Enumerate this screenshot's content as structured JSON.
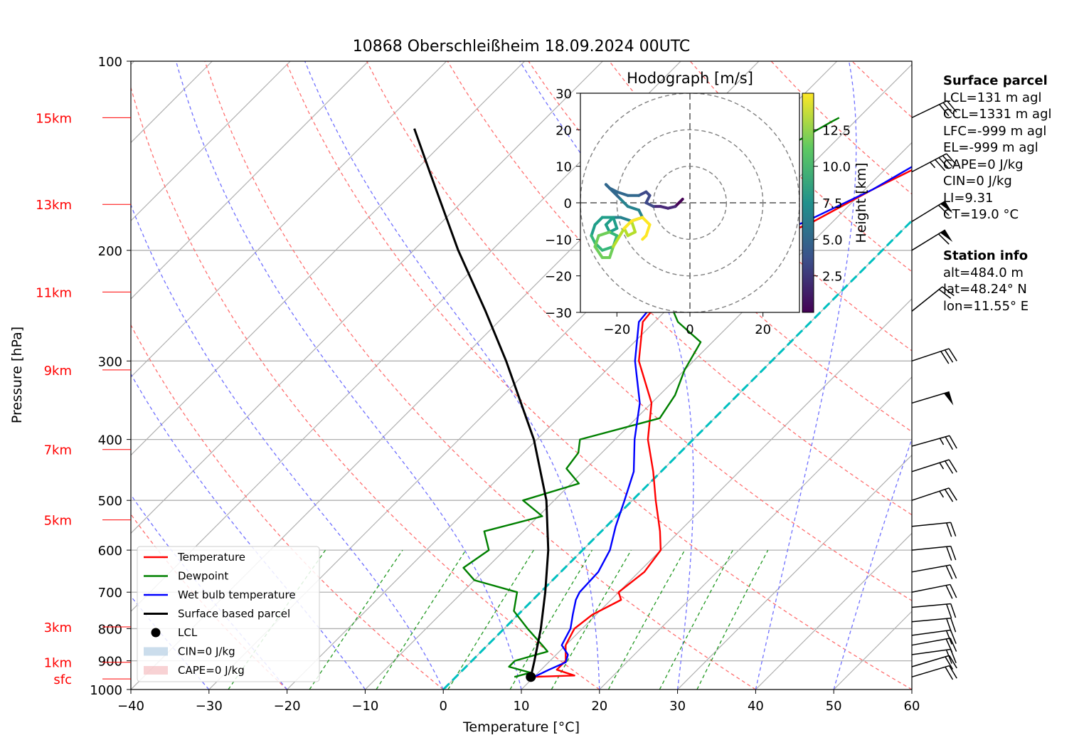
{
  "chart_data": {
    "type": "skew-t",
    "title": "10868 Oberschleißheim 18.09.2024 00UTC",
    "xlabel": "Temperature [°C]",
    "ylabel": "Pressure [hPa]",
    "xlim": [
      -40,
      60
    ],
    "ylim": [
      1000,
      100
    ],
    "x_ticks": [
      "−40",
      "−30",
      "−20",
      "−10",
      "0",
      "10",
      "20",
      "30",
      "40",
      "50",
      "60"
    ],
    "y_ticks": [
      {
        "p": 100,
        "label": "100"
      },
      {
        "p": 200,
        "label": "200"
      },
      {
        "p": 300,
        "label": "300"
      },
      {
        "p": 400,
        "label": "400"
      },
      {
        "p": 500,
        "label": "500"
      },
      {
        "p": 600,
        "label": "600"
      },
      {
        "p": 700,
        "label": "700"
      },
      {
        "p": 800,
        "label": "800"
      },
      {
        "p": 900,
        "label": "900"
      },
      {
        "p": 1000,
        "label": "1000"
      }
    ],
    "height_ticks": [
      {
        "p": 962,
        "label": "sfc"
      },
      {
        "p": 905,
        "label": "1km"
      },
      {
        "p": 795,
        "label": "3km"
      },
      {
        "p": 537,
        "label": "5km"
      },
      {
        "p": 415,
        "label": "7km"
      },
      {
        "p": 310,
        "label": "9km"
      },
      {
        "p": 233,
        "label": "11km"
      },
      {
        "p": 169,
        "label": "13km"
      },
      {
        "p": 123,
        "label": "15km"
      }
    ],
    "series": [
      {
        "name": "Temperature",
        "color": "#ff0000",
        "points": [
          [
            955,
            9.6
          ],
          [
            950,
            15.0
          ],
          [
            930,
            12.0
          ],
          [
            900,
            12.0
          ],
          [
            850,
            10.0
          ],
          [
            800,
            9.0
          ],
          [
            760,
            9.5
          ],
          [
            720,
            11.3
          ],
          [
            700,
            10.0
          ],
          [
            650,
            10.7
          ],
          [
            600,
            10.0
          ],
          [
            560,
            7.5
          ],
          [
            500,
            3.0
          ],
          [
            450,
            -1.0
          ],
          [
            400,
            -5.8
          ],
          [
            350,
            -10.0
          ],
          [
            300,
            -17.0
          ],
          [
            260,
            -21.5
          ],
          [
            240,
            -22.0
          ],
          [
            220,
            -22.2
          ],
          [
            205,
            -21.0
          ],
          [
            195,
            -16.0
          ],
          [
            180,
            -12.5
          ],
          [
            160,
            -9.0
          ],
          [
            145,
            -5.5
          ],
          [
            130,
            -4.0
          ],
          [
            122,
            -6.0
          ]
        ]
      },
      {
        "name": "Dewpoint",
        "color": "#008000",
        "points": [
          [
            955,
            7.5
          ],
          [
            940,
            9.0
          ],
          [
            920,
            5.5
          ],
          [
            900,
            5.5
          ],
          [
            870,
            8.5
          ],
          [
            850,
            7.0
          ],
          [
            800,
            3.0
          ],
          [
            750,
            -1.0
          ],
          [
            700,
            -3.0
          ],
          [
            670,
            -10.0
          ],
          [
            640,
            -13.0
          ],
          [
            600,
            -12.0
          ],
          [
            560,
            -15.0
          ],
          [
            530,
            -9.5
          ],
          [
            500,
            -14.0
          ],
          [
            470,
            -9.0
          ],
          [
            445,
            -12.5
          ],
          [
            420,
            -13.0
          ],
          [
            400,
            -14.5
          ],
          [
            370,
            -7.0
          ],
          [
            340,
            -8.0
          ],
          [
            310,
            -10.0
          ],
          [
            280,
            -11.5
          ],
          [
            260,
            -17.0
          ],
          [
            240,
            -21.0
          ],
          [
            220,
            -22.0
          ],
          [
            200,
            -20.0
          ],
          [
            190,
            -23.0
          ],
          [
            180,
            -29.0
          ],
          [
            170,
            -30.0
          ],
          [
            155,
            -28.5
          ],
          [
            140,
            -26.0
          ],
          [
            125,
            -23.0
          ],
          [
            123,
            -22.5
          ]
        ]
      },
      {
        "name": "Wet bulb temperature",
        "color": "#0000ff",
        "points": [
          [
            955,
            10.0
          ],
          [
            930,
            11.0
          ],
          [
            905,
            12.2
          ],
          [
            880,
            11.5
          ],
          [
            850,
            9.5
          ],
          [
            800,
            8.5
          ],
          [
            760,
            7.0
          ],
          [
            720,
            5.5
          ],
          [
            700,
            5.0
          ],
          [
            650,
            4.8
          ],
          [
            600,
            3.5
          ],
          [
            550,
            1.2
          ],
          [
            500,
            -1.0
          ],
          [
            450,
            -3.5
          ],
          [
            400,
            -7.5
          ],
          [
            350,
            -11.5
          ],
          [
            300,
            -17.5
          ],
          [
            260,
            -22.0
          ],
          [
            240,
            -22.5
          ],
          [
            220,
            -22.5
          ],
          [
            205,
            -21.5
          ],
          [
            195,
            -17.5
          ],
          [
            180,
            -13.5
          ],
          [
            160,
            -9.0
          ],
          [
            145,
            -6.5
          ],
          [
            130,
            -5.0
          ],
          [
            122,
            -6.5
          ]
        ]
      },
      {
        "name": "Surface based parcel",
        "color": "#000000",
        "points": [
          [
            955,
            9.6
          ],
          [
            900,
            8.0
          ],
          [
            850,
            6.4
          ],
          [
            800,
            4.7
          ],
          [
            700,
            0.6
          ],
          [
            600,
            -4.4
          ],
          [
            500,
            -11.0
          ],
          [
            400,
            -20.4
          ],
          [
            300,
            -34.0
          ],
          [
            250,
            -43.0
          ],
          [
            200,
            -54.3
          ],
          [
            150,
            -68.0
          ],
          [
            128,
            -75.5
          ]
        ]
      }
    ],
    "lcl": {
      "name": "LCL",
      "p": 955,
      "t": 9.6
    },
    "cin_label": "CIN=0 J/kg",
    "cape_label": "CAPE=0 J/kg",
    "zero_isotherm": {
      "color": "#00c0c0",
      "points": [
        [
          1000,
          0
        ],
        [
          120,
          0
        ]
      ]
    },
    "wind_barbs_kt": [
      {
        "p": 955,
        "u": -20,
        "v": -6
      },
      {
        "p": 920,
        "u": -20,
        "v": -6
      },
      {
        "p": 880,
        "u": -22,
        "v": -3
      },
      {
        "p": 850,
        "u": -22,
        "v": -4
      },
      {
        "p": 820,
        "u": -22,
        "v": -3
      },
      {
        "p": 780,
        "u": -22,
        "v": -2
      },
      {
        "p": 740,
        "u": -22,
        "v": -2
      },
      {
        "p": 700,
        "u": -20,
        "v": -4
      },
      {
        "p": 650,
        "u": -22,
        "v": -4
      },
      {
        "p": 600,
        "u": -20,
        "v": -2
      },
      {
        "p": 550,
        "u": -20,
        "v": -2
      },
      {
        "p": 500,
        "u": -24,
        "v": -8
      },
      {
        "p": 450,
        "u": -25,
        "v": -8
      },
      {
        "p": 410,
        "u": -25,
        "v": -7
      },
      {
        "p": 350,
        "u": -50,
        "v": -15
      },
      {
        "p": 300,
        "u": -30,
        "v": -10
      },
      {
        "p": 250,
        "u": -15,
        "v": -12
      },
      {
        "p": 200,
        "u": -52,
        "v": -32
      },
      {
        "p": 180,
        "u": -52,
        "v": -32
      },
      {
        "p": 150,
        "u": -42,
        "v": -22
      },
      {
        "p": 123,
        "u": -25,
        "v": -12
      }
    ],
    "hodograph": {
      "title": "Hodograph [m/s]",
      "xlim": [
        -30,
        30
      ],
      "ylim": [
        -30,
        30
      ],
      "ticks": [
        "−20",
        "0",
        "20"
      ],
      "yticks": [
        "30",
        "20",
        "10",
        "0",
        "−10",
        "−20",
        "−30"
      ],
      "rings": [
        10,
        20,
        30
      ],
      "colorbar_label": "Height [km]",
      "colorbar_ticks": [
        "2.5",
        "5.0",
        "7.5",
        "10.0",
        "12.5"
      ],
      "colorbar_range": [
        0,
        15
      ],
      "trace": [
        [
          -2,
          1,
          0.2
        ],
        [
          -3,
          0,
          0.6
        ],
        [
          -4,
          -1,
          1.0
        ],
        [
          -6,
          -1.5,
          1.5
        ],
        [
          -8,
          -1,
          2.0
        ],
        [
          -10,
          -1,
          2.5
        ],
        [
          -12,
          0,
          3.0
        ],
        [
          -11,
          2,
          3.4
        ],
        [
          -12,
          3,
          3.8
        ],
        [
          -14,
          2,
          4.2
        ],
        [
          -17,
          2,
          4.6
        ],
        [
          -20,
          3,
          5.0
        ],
        [
          -22,
          4,
          5.2
        ],
        [
          -23,
          5,
          5.4
        ],
        [
          -21,
          3,
          5.6
        ],
        [
          -19,
          1,
          5.8
        ],
        [
          -17,
          -1,
          6.0
        ],
        [
          -14,
          -2,
          6.3
        ],
        [
          -13,
          -4,
          6.6
        ],
        [
          -16,
          -5,
          6.9
        ],
        [
          -19,
          -4,
          7.2
        ],
        [
          -21,
          -4,
          7.4
        ],
        [
          -23,
          -6,
          7.6
        ],
        [
          -22,
          -8,
          7.8
        ],
        [
          -20,
          -7,
          8.0
        ],
        [
          -21,
          -4,
          8.2
        ],
        [
          -24,
          -4,
          8.4
        ],
        [
          -26,
          -6,
          8.6
        ],
        [
          -27,
          -9,
          8.8
        ],
        [
          -26,
          -11,
          9.0
        ],
        [
          -24,
          -13,
          9.3
        ],
        [
          -21,
          -12,
          9.6
        ],
        [
          -20,
          -9,
          9.9
        ],
        [
          -22,
          -8,
          10.2
        ],
        [
          -25,
          -9,
          10.5
        ],
        [
          -26,
          -12,
          10.8
        ],
        [
          -24,
          -15,
          11.1
        ],
        [
          -22,
          -15,
          11.4
        ],
        [
          -21,
          -12,
          11.7
        ],
        [
          -18,
          -7,
          12.0
        ],
        [
          -16,
          -5,
          12.3
        ],
        [
          -15,
          -8,
          12.6
        ],
        [
          -17,
          -9,
          12.9
        ],
        [
          -18,
          -7,
          13.2
        ],
        [
          -16,
          -5,
          13.5
        ],
        [
          -13,
          -4,
          13.8
        ],
        [
          -11,
          -6,
          14.1
        ],
        [
          -12,
          -9,
          14.4
        ],
        [
          -13,
          -10,
          14.7
        ]
      ]
    },
    "legend": [
      {
        "name": "Temperature",
        "kind": "line",
        "color": "#ff0000"
      },
      {
        "name": "Dewpoint",
        "kind": "line",
        "color": "#008000"
      },
      {
        "name": "Wet bulb temperature",
        "kind": "line",
        "color": "#0000ff"
      },
      {
        "name": "Surface based parcel",
        "kind": "line",
        "color": "#000000"
      },
      {
        "name": "LCL",
        "kind": "dot",
        "color": "#000000"
      },
      {
        "name": "CIN=0 J/kg",
        "kind": "patch",
        "color": "#a9c6e0"
      },
      {
        "name": "CAPE=0 J/kg",
        "kind": "patch",
        "color": "#f4b4b8"
      }
    ],
    "grid": true
  },
  "surface_parcel": {
    "heading": "Surface parcel",
    "lines": [
      "LCL=131 m agl",
      "CCL=1331 m agl",
      "LFC=-999 m agl",
      "EL=-999 m agl",
      "CAPE=0 J/kg",
      "CIN=0 J/kg",
      "LI=9.31",
      "CT=19.0 °C"
    ]
  },
  "station_info": {
    "heading": "Station info",
    "lines": [
      "alt=484.0 m",
      "lat=48.24° N",
      "lon=11.55° E"
    ]
  }
}
